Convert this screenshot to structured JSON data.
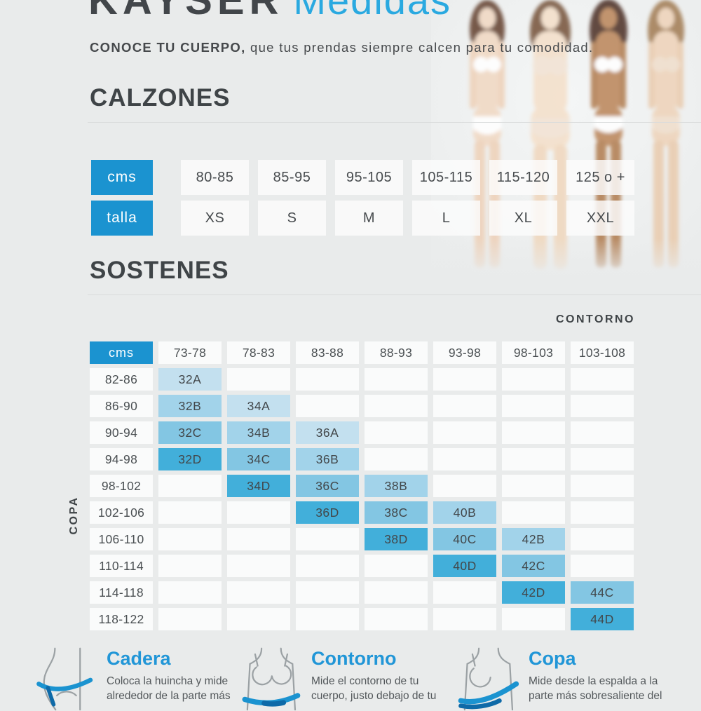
{
  "page": {
    "brand": "KAYSER",
    "title": "Medidas",
    "tagline_bold": "CONOCE TU CUERPO,",
    "tagline_rest": "que tus prendas siempre calcen para tu comodidad."
  },
  "calzones": {
    "title": "CALZONES",
    "cms_label": "cms",
    "talla_label": "talla",
    "cms_values": [
      "80-85",
      "85-95",
      "95-105",
      "105-115",
      "115-120",
      "125 o +"
    ],
    "talla_values": [
      "XS",
      "S",
      "M",
      "L",
      "XL",
      "XXL"
    ]
  },
  "sostenes": {
    "title": "SOSTENES",
    "contorno_label": "CONTORNO",
    "copa_label": "COPA",
    "cms_label": "cms",
    "contorno_ranges": [
      "73-78",
      "78-83",
      "83-88",
      "88-93",
      "93-98",
      "98-103",
      "103-108"
    ],
    "rows": [
      {
        "label": "82-86",
        "cells": [
          "32A",
          "",
          "",
          "",
          "",
          "",
          ""
        ]
      },
      {
        "label": "86-90",
        "cells": [
          "32B",
          "34A",
          "",
          "",
          "",
          "",
          ""
        ]
      },
      {
        "label": "90-94",
        "cells": [
          "32C",
          "34B",
          "36A",
          "",
          "",
          "",
          ""
        ]
      },
      {
        "label": "94-98",
        "cells": [
          "32D",
          "34C",
          "36B",
          "",
          "",
          "",
          ""
        ]
      },
      {
        "label": "98-102",
        "cells": [
          "",
          "34D",
          "36C",
          "38B",
          "",
          "",
          ""
        ]
      },
      {
        "label": "102-106",
        "cells": [
          "",
          "",
          "36D",
          "38C",
          "40B",
          "",
          ""
        ]
      },
      {
        "label": "106-110",
        "cells": [
          "",
          "",
          "",
          "38D",
          "40C",
          "42B",
          ""
        ]
      },
      {
        "label": "110-114",
        "cells": [
          "",
          "",
          "",
          "",
          "40D",
          "42C",
          ""
        ]
      },
      {
        "label": "114-118",
        "cells": [
          "",
          "",
          "",
          "",
          "",
          "42D",
          "44C"
        ]
      },
      {
        "label": "118-122",
        "cells": [
          "",
          "",
          "",
          "",
          "",
          "",
          "44D"
        ]
      }
    ]
  },
  "legend": [
    {
      "title": "Cadera",
      "line1": "Coloca la huincha y mide",
      "line2": "alrededor de la parte más",
      "icon": "hip-measure-icon"
    },
    {
      "title": "Contorno",
      "line1": "Mide el contorno de tu",
      "line2": "cuerpo, justo debajo de tu",
      "icon": "underbust-measure-icon"
    },
    {
      "title": "Copa",
      "line1": "Mide desde la espalda a la",
      "line2": "parte más sobresaliente del",
      "icon": "cup-measure-icon"
    }
  ],
  "colors": {
    "accent_blue": "#1b93d0",
    "title_blue": "#2aa9e0",
    "heading_blue": "#2196d7",
    "tape_dark_blue": "#0e6aa8",
    "cup_A": "#c3e0ef",
    "cup_B": "#a2d3ea",
    "cup_C": "#83c6e3",
    "cup_D": "#42afda"
  }
}
